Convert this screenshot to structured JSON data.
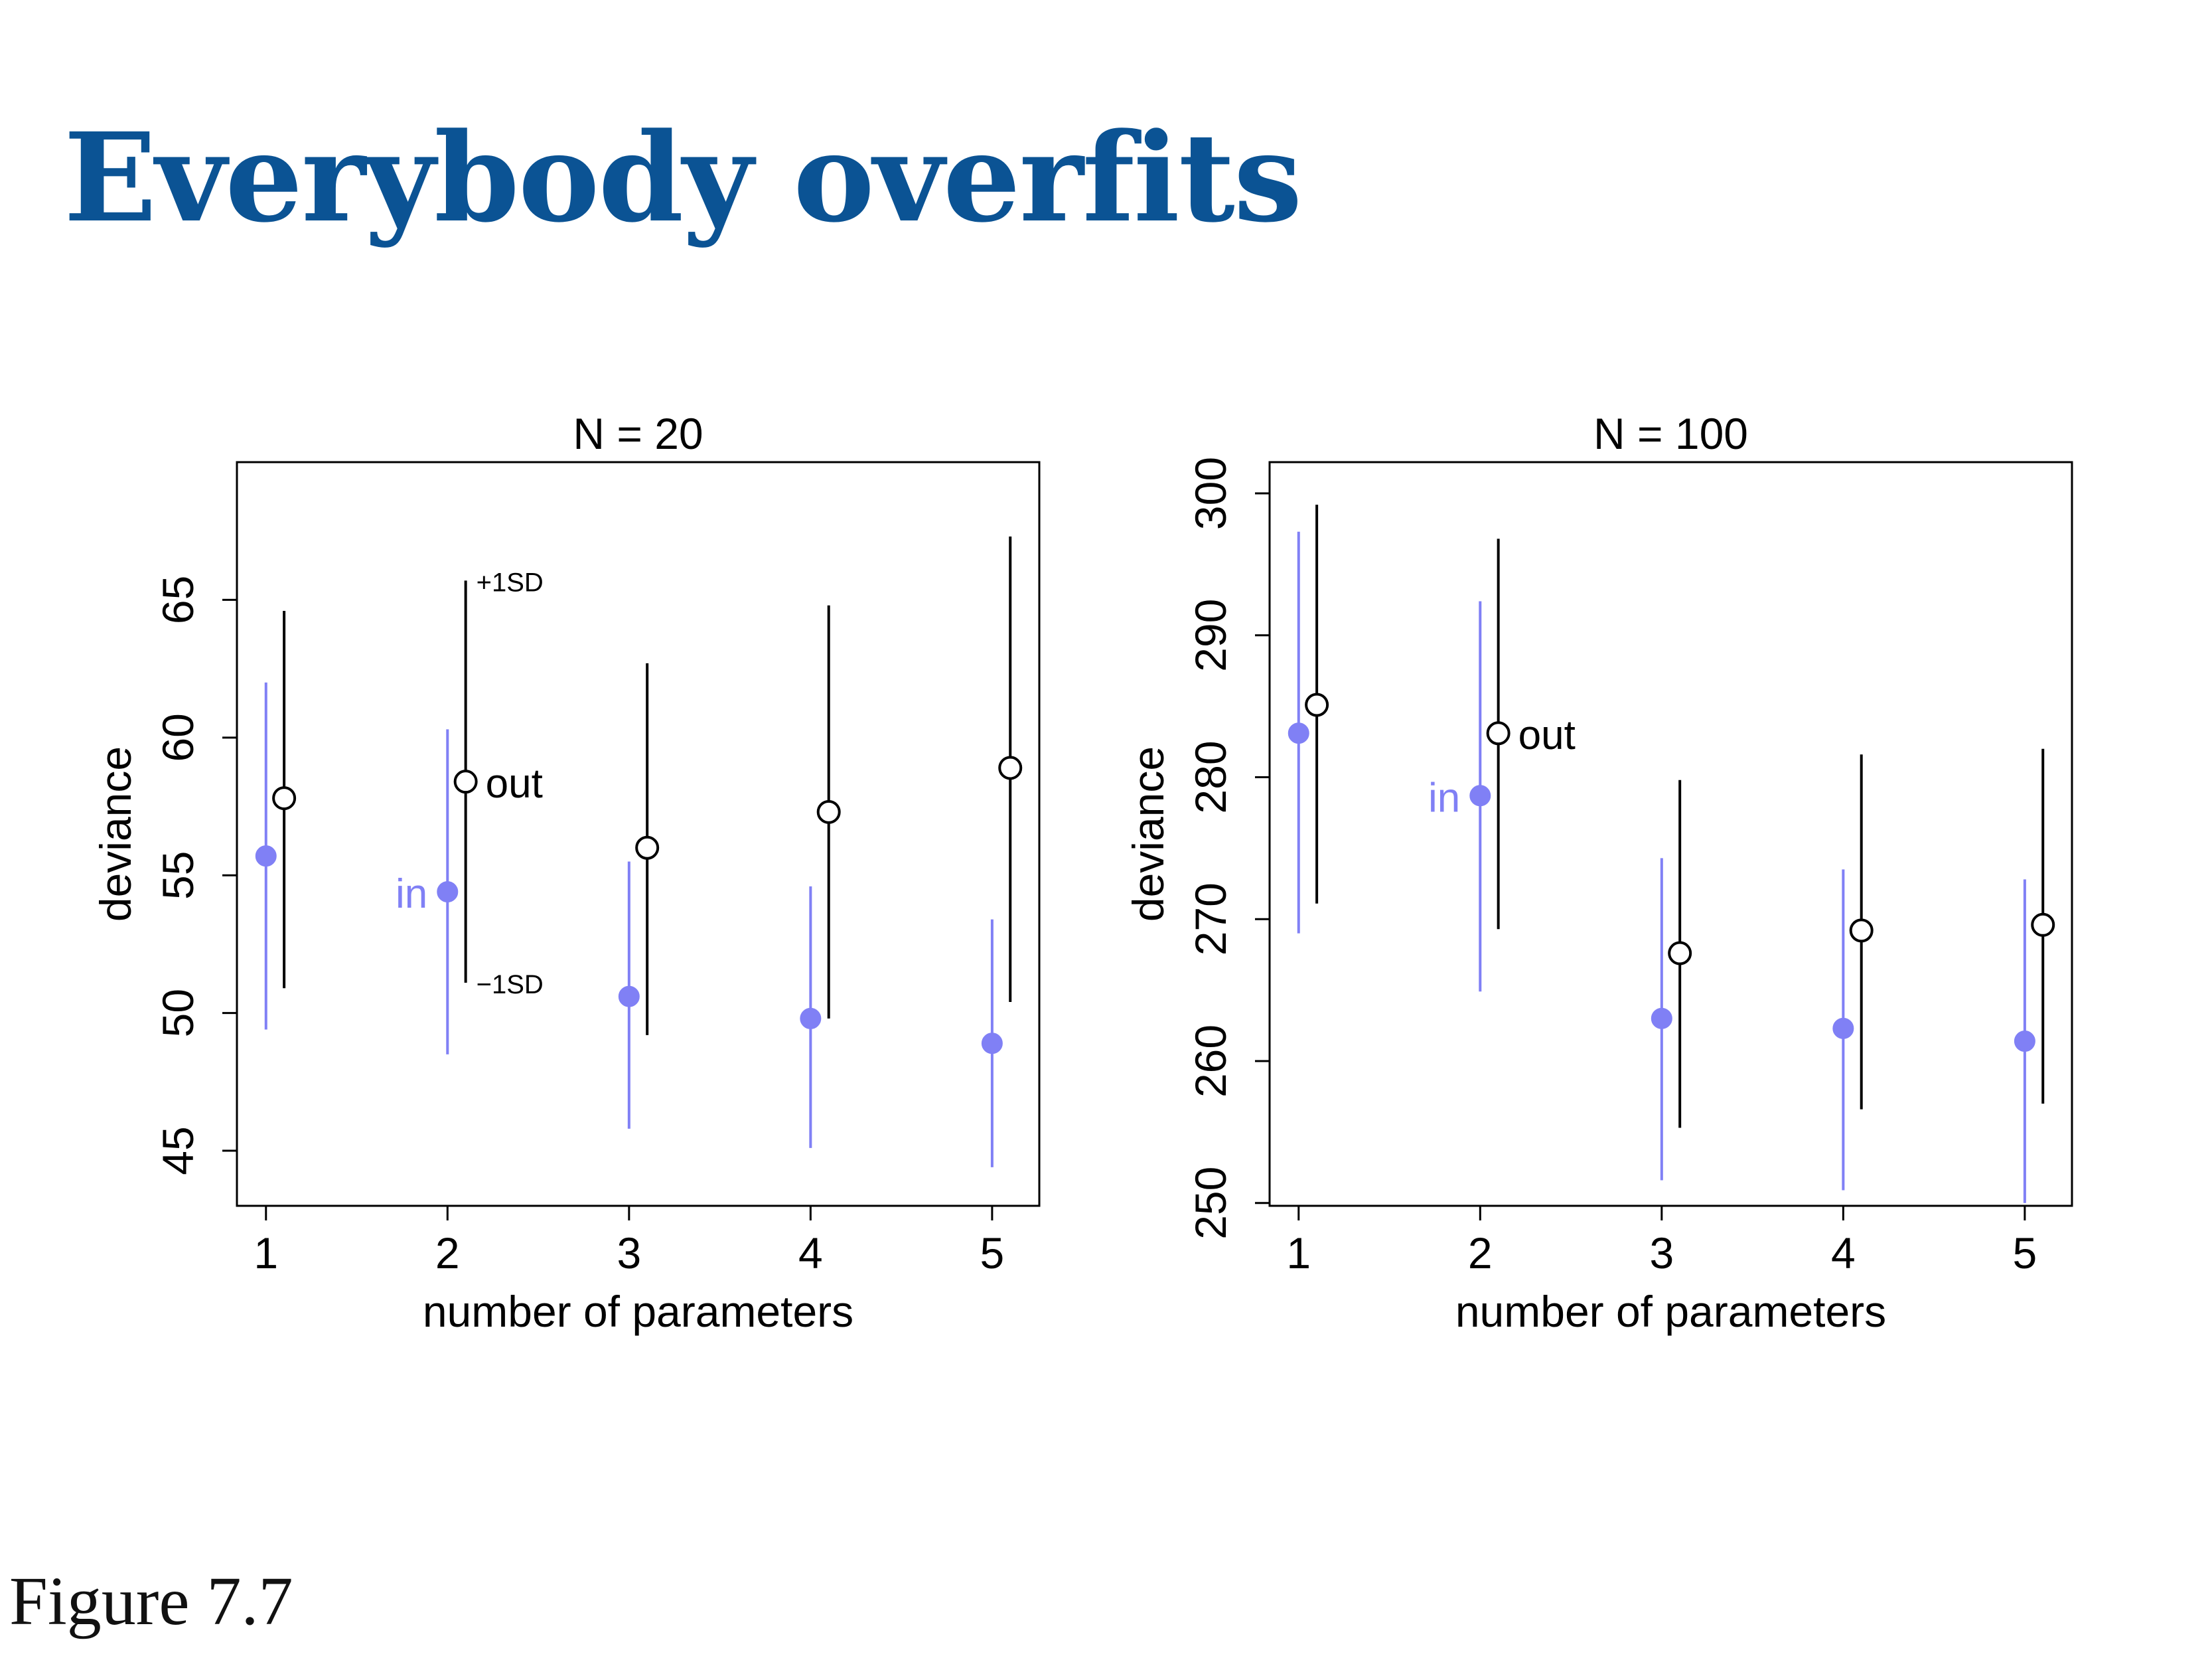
{
  "page": {
    "title": "Everybody overfits",
    "caption": "Figure 7.7"
  },
  "colors": {
    "in": "#8080f5",
    "out": "#000000",
    "title": "#0b5394"
  },
  "chart_data": [
    {
      "type": "scatter",
      "title": "N = 20",
      "xlabel": "number of parameters",
      "ylabel": "deviance",
      "xlim": [
        0.84,
        5.26
      ],
      "ylim": [
        43.0,
        70.0
      ],
      "xticks": [
        1,
        2,
        3,
        4,
        5
      ],
      "yticks": [
        45,
        50,
        55,
        60,
        65
      ],
      "offset_out": 0.1,
      "series": [
        {
          "name": "in",
          "x": [
            1,
            2,
            3,
            4,
            5
          ],
          "mean": [
            55.7,
            54.4,
            50.6,
            49.8,
            48.9
          ],
          "lower": [
            49.4,
            48.5,
            45.8,
            45.1,
            44.4
          ],
          "upper": [
            62.0,
            60.3,
            55.5,
            54.6,
            53.4
          ]
        },
        {
          "name": "out",
          "x": [
            1,
            2,
            3,
            4,
            5
          ],
          "mean": [
            57.8,
            58.4,
            56.0,
            57.3,
            58.9
          ],
          "lower": [
            50.9,
            51.1,
            49.2,
            49.8,
            50.4
          ],
          "upper": [
            64.6,
            65.7,
            62.7,
            64.8,
            67.3
          ]
        }
      ],
      "annotations": {
        "in_label": "in",
        "out_label": "out",
        "plus_sd": "+1SD",
        "minus_sd": "−1SD"
      }
    },
    {
      "type": "scatter",
      "title": "N = 100",
      "xlabel": "number of parameters",
      "ylabel": "deviance",
      "xlim": [
        0.84,
        5.26
      ],
      "ylim": [
        249.8,
        302.2
      ],
      "xticks": [
        1,
        2,
        3,
        4,
        5
      ],
      "yticks": [
        250,
        260,
        270,
        280,
        290,
        300
      ],
      "offset_out": 0.1,
      "series": [
        {
          "name": "in",
          "x": [
            1,
            2,
            3,
            4,
            5
          ],
          "mean": [
            283.1,
            278.7,
            263.0,
            262.3,
            261.4
          ],
          "lower": [
            269.0,
            264.9,
            251.6,
            250.9,
            250.0
          ],
          "upper": [
            297.3,
            292.4,
            274.3,
            273.5,
            272.8
          ]
        },
        {
          "name": "out",
          "x": [
            1,
            2,
            3,
            4,
            5
          ],
          "mean": [
            285.1,
            283.1,
            267.6,
            269.2,
            269.6
          ],
          "lower": [
            271.1,
            269.3,
            255.3,
            256.6,
            257.0
          ],
          "upper": [
            299.2,
            296.8,
            279.8,
            281.6,
            282.0
          ]
        }
      ],
      "annotations": {
        "in_label": "in",
        "out_label": "out"
      }
    }
  ]
}
